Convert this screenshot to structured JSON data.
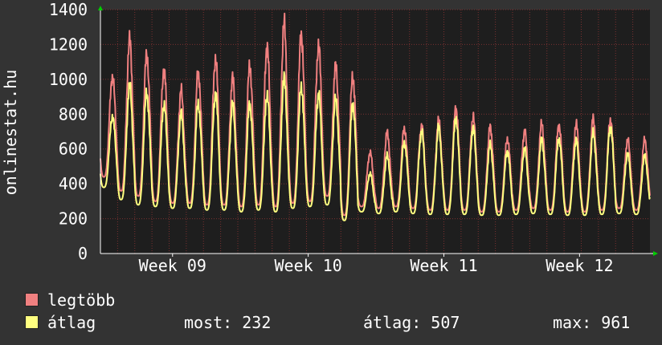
{
  "colors": {
    "background": "#333333",
    "plot_bg": "#1e1e1e",
    "grid": "#7a3030",
    "axis": "#ffffff",
    "arrow": "#00cc00",
    "max_line": "#f08080",
    "avg_line": "#ffff80"
  },
  "chart_data": {
    "type": "line",
    "ylabel": "onlinestat.hu",
    "ylim": [
      0,
      1400
    ],
    "yticks": [
      0,
      200,
      400,
      600,
      800,
      1000,
      1200,
      1400
    ],
    "x_range_days": [
      0,
      32
    ],
    "xticks": [
      {
        "label": "Week 09",
        "day": 4.2
      },
      {
        "label": "Week 10",
        "day": 12.1
      },
      {
        "label": "Week 11",
        "day": 20.0
      },
      {
        "label": "Week 12",
        "day": 27.9
      }
    ],
    "grid": true,
    "series": [
      {
        "name": "legtöbb",
        "color": "#f08080",
        "daily_peaks": [
          1020,
          1220,
          1140,
          1060,
          930,
          1040,
          1120,
          1000,
          1080,
          1190,
          1310,
          1260,
          1200,
          1070,
          1020,
          580,
          690,
          720,
          730,
          760,
          840,
          780,
          720,
          660,
          700,
          740,
          740,
          740,
          770,
          770,
          650,
          650,
          810
        ],
        "daily_lows": [
          440,
          360,
          330,
          300,
          290,
          290,
          280,
          280,
          270,
          280,
          270,
          290,
          300,
          330,
          220,
          270,
          260,
          270,
          260,
          250,
          250,
          250,
          240,
          240,
          250,
          260,
          250,
          240,
          240,
          250,
          260,
          250,
          230
        ]
      },
      {
        "name": "átlag",
        "color": "#ffff80",
        "daily_peaks": [
          790,
          960,
          920,
          860,
          800,
          860,
          920,
          850,
          860,
          910,
          1000,
          960,
          920,
          880,
          860,
          460,
          560,
          640,
          700,
          720,
          780,
          720,
          620,
          590,
          600,
          650,
          660,
          650,
          690,
          730,
          570,
          560,
          740
        ],
        "daily_lows": [
          380,
          310,
          280,
          270,
          260,
          260,
          250,
          250,
          240,
          250,
          240,
          260,
          270,
          280,
          190,
          240,
          230,
          240,
          230,
          225,
          225,
          225,
          220,
          220,
          225,
          230,
          225,
          220,
          220,
          225,
          230,
          225,
          232
        ]
      }
    ]
  },
  "legend": {
    "max_label": "legtöbb",
    "avg_label": "átlag",
    "now_text": "most: 232",
    "avg_text": "átlag: 507",
    "max_text": "max: 961"
  }
}
